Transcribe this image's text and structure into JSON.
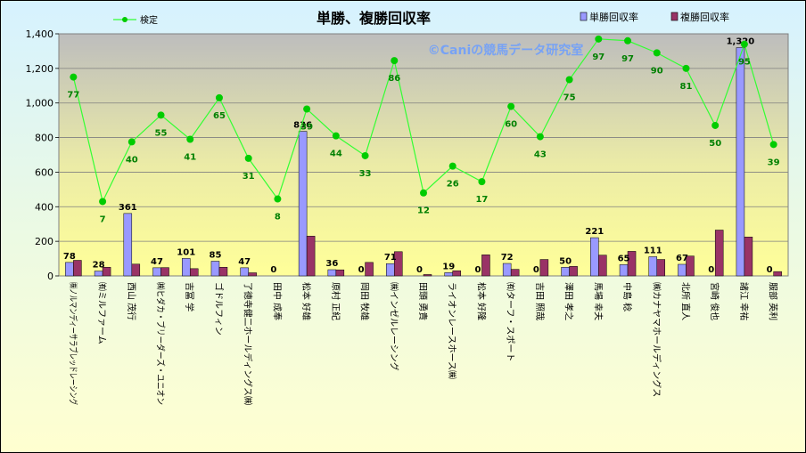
{
  "chart_data": {
    "type": "bar",
    "title": "単勝、複勝回収率",
    "watermark": "©Caniの競馬データ研究室",
    "categories": [
      "㈱ノルマンディーサラブレッドレーシング",
      "㈲ミルファーム",
      "西山 茂行",
      "㈱ヒダカ・ブリーダーズ・ユニオン",
      "吉冨 学",
      "ゴドルフィン",
      "了徳寺健二ホールディングス㈱",
      "田中 成奉",
      "松本 好雄",
      "原村 正紀",
      "岡田 牧雄",
      "㈱インゼルレーシング",
      "田頭 勇貴",
      "ライオンレースホース㈱",
      "松本 好隆",
      "㈲ターフ・スポート",
      "吉田 照哉",
      "澤田 孝之",
      "馬場 幸夫",
      "中島 稔",
      "㈱カナヤマホールディングス",
      "北所 直人",
      "宮崎 俊也",
      "諸江 幸祐",
      "服部 英利"
    ],
    "ylim": [
      0,
      1400
    ],
    "yticks": [
      0,
      200,
      400,
      600,
      800,
      1000,
      1200,
      1400
    ],
    "ytick_labels": [
      "0",
      "200",
      "400",
      "600",
      "800",
      "1,000",
      "1,200",
      "1,400"
    ],
    "legend_placement": "top",
    "series": [
      {
        "name": "単勝回収率",
        "type": "bar",
        "color": "#9999ff",
        "values": [
          78,
          28,
          361,
          47,
          101,
          85,
          47,
          0,
          836,
          36,
          0,
          71,
          0,
          19,
          0,
          72,
          0,
          50,
          221,
          65,
          111,
          67,
          0,
          1320,
          0
        ],
        "labels": [
          "78",
          "28",
          "361",
          "47",
          "101",
          "85",
          "47",
          "0",
          "836",
          "36",
          "0",
          "71",
          "0",
          "19",
          "0",
          "72",
          "0",
          "50",
          "221",
          "65",
          "111",
          "67",
          "0",
          "1,320",
          "0"
        ]
      },
      {
        "name": "複勝回収率",
        "type": "bar",
        "color": "#993366",
        "values": [
          90,
          50,
          68,
          48,
          42,
          50,
          18,
          0,
          230,
          35,
          78,
          140,
          8,
          30,
          122,
          38,
          95,
          55,
          120,
          142,
          95,
          115,
          265,
          225,
          25
        ]
      },
      {
        "name": "検定",
        "type": "line",
        "color": "#33ff33",
        "marker_color": "#00cc00",
        "values": [
          1150,
          430,
          775,
          930,
          790,
          1030,
          680,
          445,
          965,
          810,
          695,
          1245,
          480,
          635,
          545,
          980,
          805,
          1135,
          1370,
          1360,
          1290,
          1200,
          870,
          1340,
          760
        ],
        "labels": [
          "77",
          "7",
          "40",
          "55",
          "41",
          "65",
          "31",
          "8",
          "39",
          "44",
          "33",
          "86",
          "12",
          "26",
          "17",
          "60",
          "43",
          "75",
          "97",
          "97",
          "90",
          "81",
          "50",
          "95",
          "39"
        ]
      }
    ]
  }
}
